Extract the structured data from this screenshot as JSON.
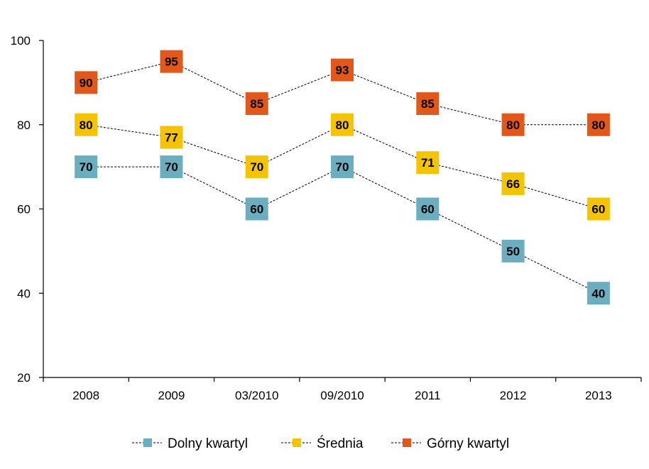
{
  "chart_data": {
    "type": "line",
    "categories": [
      "2008",
      "2009",
      "03/2010",
      "09/2010",
      "2011",
      "2012",
      "2013"
    ],
    "series": [
      {
        "name": "Dolny kwartyl",
        "color": "#6aaebf",
        "values": [
          70,
          70,
          60,
          70,
          60,
          50,
          40
        ]
      },
      {
        "name": "Średnia",
        "color": "#f5c400",
        "values": [
          80,
          77,
          70,
          80,
          71,
          66,
          60
        ]
      },
      {
        "name": "Górny kwartyl",
        "color": "#e2581a",
        "values": [
          90,
          95,
          85,
          93,
          85,
          80,
          80
        ]
      }
    ],
    "ylim": [
      20,
      100
    ],
    "yticks": [
      20,
      40,
      60,
      80,
      100
    ],
    "grid": false,
    "line_style": "dotted",
    "legend_position": "bottom"
  }
}
